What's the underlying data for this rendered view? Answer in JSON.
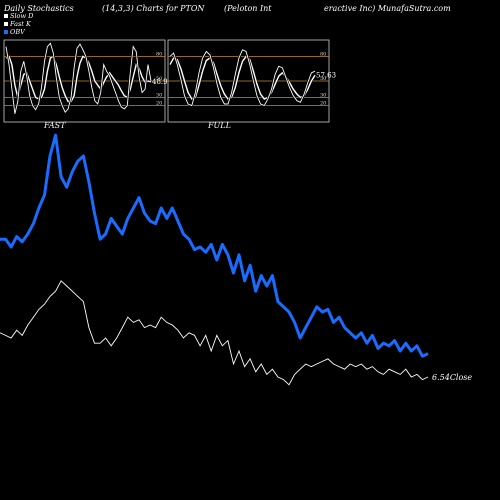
{
  "header": {
    "left": "Daily Stochastics",
    "params": "(14,3,3) Charts for PTON",
    "company_a": "(Peloton Int",
    "company_b": "eractive Inc) MunafaSutra.com"
  },
  "legend": {
    "items": [
      {
        "label": "Slow D",
        "color": "#ffffff"
      },
      {
        "label": "Fast K",
        "color": "#ffffff"
      },
      {
        "label": "OBV",
        "color": "#1a6cff"
      }
    ]
  },
  "colors": {
    "obv": "#1a6cff",
    "price": "#ffffff",
    "guide": "#c88a2a",
    "panel_border": "#cccccc"
  },
  "chart_data": [
    {
      "type": "line",
      "title": "FAST",
      "ylim": [
        0,
        100
      ],
      "yticks": [
        20,
        30,
        50,
        80
      ],
      "last_value_label": "48.98",
      "series": [
        {
          "name": "Slow D",
          "values": [
            78,
            80,
            70,
            45,
            30,
            45,
            58,
            60,
            50,
            40,
            30,
            28,
            30,
            40,
            62,
            78,
            80,
            70,
            55,
            42,
            32,
            25,
            25,
            32,
            55,
            72,
            80,
            78,
            72,
            62,
            50,
            45,
            40,
            48,
            55,
            60,
            55,
            50,
            45,
            38,
            32,
            30,
            40,
            55,
            70,
            65,
            55,
            48,
            50,
            49
          ]
        },
        {
          "name": "Fast K",
          "values": [
            92,
            70,
            40,
            10,
            25,
            62,
            74,
            56,
            32,
            20,
            15,
            22,
            42,
            74,
            92,
            96,
            84,
            54,
            30,
            20,
            12,
            16,
            30,
            66,
            90,
            95,
            88,
            80,
            62,
            42,
            26,
            22,
            36,
            70,
            62,
            56,
            46,
            36,
            26,
            18,
            16,
            20,
            60,
            92,
            86,
            54,
            36,
            40,
            70,
            50
          ]
        }
      ]
    },
    {
      "type": "line",
      "title": "FULL",
      "ylim": [
        0,
        100
      ],
      "yticks": [
        20,
        30,
        50,
        80
      ],
      "last_value_label": "57.63",
      "series": [
        {
          "name": "Slow D",
          "values": [
            70,
            78,
            76,
            65,
            50,
            36,
            28,
            30,
            45,
            62,
            75,
            78,
            72,
            58,
            44,
            34,
            28,
            30,
            42,
            60,
            74,
            80,
            76,
            62,
            46,
            34,
            28,
            30,
            36,
            46,
            56,
            60,
            55,
            48,
            40,
            34,
            30,
            32,
            40,
            50,
            57
          ]
        },
        {
          "name": "Fast K",
          "values": [
            80,
            84,
            70,
            52,
            32,
            22,
            20,
            36,
            60,
            78,
            86,
            82,
            66,
            46,
            30,
            22,
            22,
            36,
            58,
            78,
            88,
            86,
            70,
            50,
            32,
            22,
            20,
            28,
            40,
            58,
            68,
            66,
            54,
            42,
            32,
            26,
            24,
            34,
            48,
            60,
            62
          ]
        }
      ]
    },
    {
      "type": "line",
      "title": "",
      "last_value_label": "6.54",
      "last_value_suffix": "Close",
      "series": [
        {
          "name": "OBV",
          "values": [
            58,
            58,
            55,
            59,
            57,
            60,
            64,
            70,
            75,
            90,
            98,
            82,
            78,
            84,
            88,
            90,
            80,
            68,
            58,
            60,
            66,
            63,
            60,
            66,
            70,
            74,
            68,
            65,
            64,
            70,
            66,
            70,
            65,
            60,
            58,
            54,
            55,
            53,
            56,
            50,
            56,
            52,
            45,
            52,
            42,
            48,
            38,
            44,
            40,
            44,
            34,
            32,
            30,
            26,
            20,
            24,
            28,
            32,
            30,
            31,
            26,
            28,
            24,
            22,
            20,
            22,
            18,
            21,
            16,
            18,
            17,
            19,
            15,
            18,
            15,
            17,
            13,
            14
          ]
        },
        {
          "name": "Close",
          "values": [
            22,
            21,
            20,
            23,
            21,
            25,
            28,
            31,
            33,
            36,
            38,
            42,
            40,
            38,
            36,
            34,
            24,
            18,
            18,
            20,
            17,
            20,
            24,
            28,
            26,
            27,
            24,
            25,
            24,
            28,
            26,
            25,
            23,
            20,
            22,
            21,
            17,
            21,
            15,
            21,
            17,
            19,
            10,
            15,
            9,
            12,
            7,
            10,
            6,
            8,
            5,
            4,
            2,
            6,
            8,
            10,
            9,
            10,
            11,
            12,
            10,
            9,
            8,
            10,
            9,
            10,
            8,
            9,
            7,
            6,
            8,
            7,
            6,
            8,
            5,
            6,
            4,
            5
          ]
        }
      ]
    }
  ]
}
